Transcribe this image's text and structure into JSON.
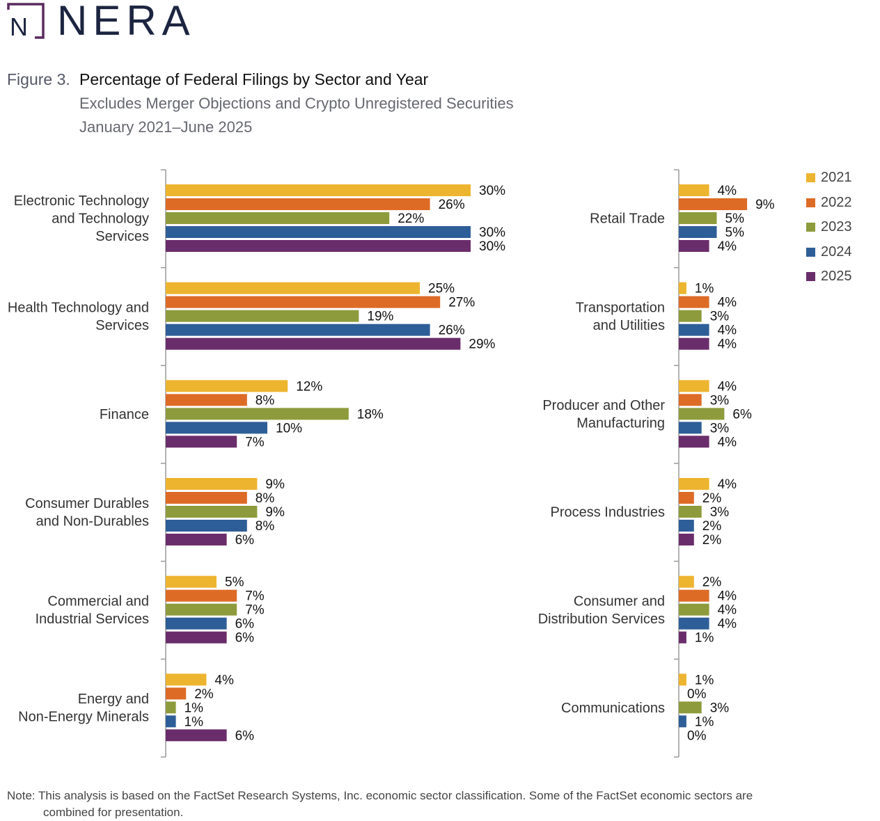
{
  "logo": {
    "name": "NERA",
    "mark_letter": "N"
  },
  "figure": {
    "label": "Figure 3.",
    "title": "Percentage of Federal Filings by Sector and Year",
    "subtitle1": "Excludes Merger Objections and Crypto Unregistered Securities",
    "subtitle2": "January 2021–June 2025"
  },
  "note": {
    "line1": "Note: This analysis is based on the FactSet Research Systems, Inc. economic sector classification. Some of the FactSet economic sectors are",
    "line2": "combined for presentation."
  },
  "colors": {
    "2021": "#EDB42F",
    "2022": "#DD6B26",
    "2023": "#8E9B3C",
    "2024": "#2E5E97",
    "2025": "#6A2D6B"
  },
  "chart_data": [
    {
      "type": "bar",
      "orientation": "horizontal",
      "series_names": [
        "2021",
        "2022",
        "2023",
        "2024",
        "2025"
      ],
      "categories": [
        {
          "lines": [
            "Electronic Technology",
            "and Technology",
            "Services"
          ],
          "values": [
            30,
            26,
            22,
            30,
            30
          ]
        },
        {
          "lines": [
            "Health Technology and",
            "Services"
          ],
          "values": [
            25,
            27,
            19,
            26,
            29
          ]
        },
        {
          "lines": [
            "Finance"
          ],
          "values": [
            12,
            8,
            18,
            10,
            7
          ]
        },
        {
          "lines": [
            "Consumer Durables",
            "and Non-Durables"
          ],
          "values": [
            9,
            8,
            9,
            8,
            6
          ]
        },
        {
          "lines": [
            "Commercial and",
            "Industrial Services"
          ],
          "values": [
            5,
            7,
            7,
            6,
            6
          ]
        },
        {
          "lines": [
            "Energy and",
            "Non-Energy Minerals"
          ],
          "values": [
            4,
            2,
            1,
            1,
            6
          ]
        }
      ],
      "unit": "%"
    },
    {
      "type": "bar",
      "orientation": "horizontal",
      "series_names": [
        "2021",
        "2022",
        "2023",
        "2024",
        "2025"
      ],
      "categories": [
        {
          "lines": [
            "Retail Trade"
          ],
          "values": [
            4,
            9,
            5,
            5,
            4
          ]
        },
        {
          "lines": [
            "Transportation",
            "and Utilities"
          ],
          "values": [
            1,
            4,
            3,
            4,
            4
          ]
        },
        {
          "lines": [
            "Producer and Other",
            "Manufacturing"
          ],
          "values": [
            4,
            3,
            6,
            3,
            4
          ]
        },
        {
          "lines": [
            "Process Industries"
          ],
          "values": [
            4,
            2,
            3,
            2,
            2
          ]
        },
        {
          "lines": [
            "Consumer and",
            "Distribution Services"
          ],
          "values": [
            2,
            4,
            4,
            4,
            1
          ]
        },
        {
          "lines": [
            "Communications"
          ],
          "values": [
            1,
            0,
            3,
            1,
            0
          ]
        }
      ],
      "unit": "%"
    }
  ],
  "legend": [
    "2021",
    "2022",
    "2023",
    "2024",
    "2025"
  ]
}
